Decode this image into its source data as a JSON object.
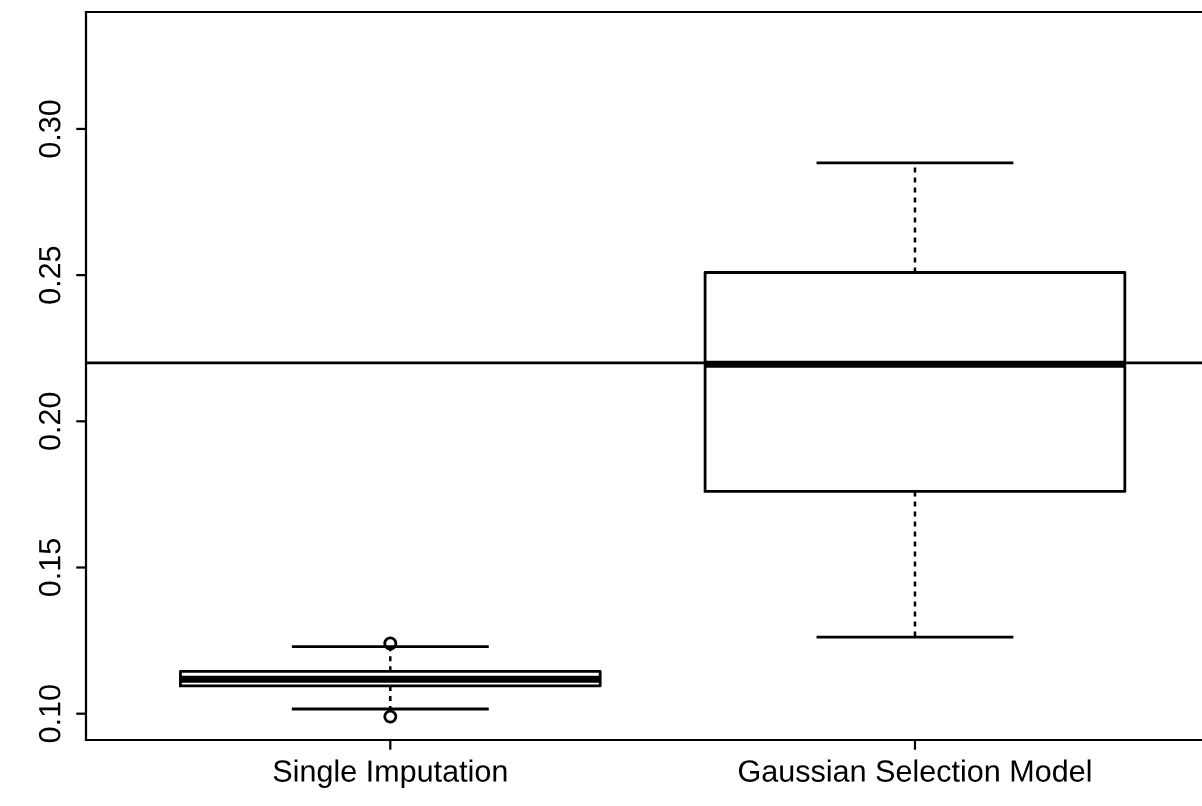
{
  "chart_data": {
    "type": "box",
    "categories": [
      "Single Imputation",
      "Gaussian Selection Model"
    ],
    "boxes": [
      {
        "low": 0.1016,
        "q1": 0.1095,
        "median": 0.1118,
        "q3": 0.1145,
        "high": 0.1229,
        "outliers": [
          0.124,
          0.099
        ]
      },
      {
        "low": 0.1262,
        "q1": 0.176,
        "median": 0.2195,
        "q3": 0.2509,
        "high": 0.2884
      }
    ],
    "ylim": [
      0.091,
      0.34
    ],
    "yticks": [
      {
        "value": 0.1,
        "label": "0.10"
      },
      {
        "value": 0.15,
        "label": "0.15"
      },
      {
        "value": 0.2,
        "label": "0.20"
      },
      {
        "value": 0.25,
        "label": "0.25"
      },
      {
        "value": 0.3,
        "label": "0.30"
      }
    ],
    "ref_lines": [
      {
        "axis": "y",
        "value": 0.22,
        "color": "#000000"
      }
    ],
    "grid": false
  }
}
